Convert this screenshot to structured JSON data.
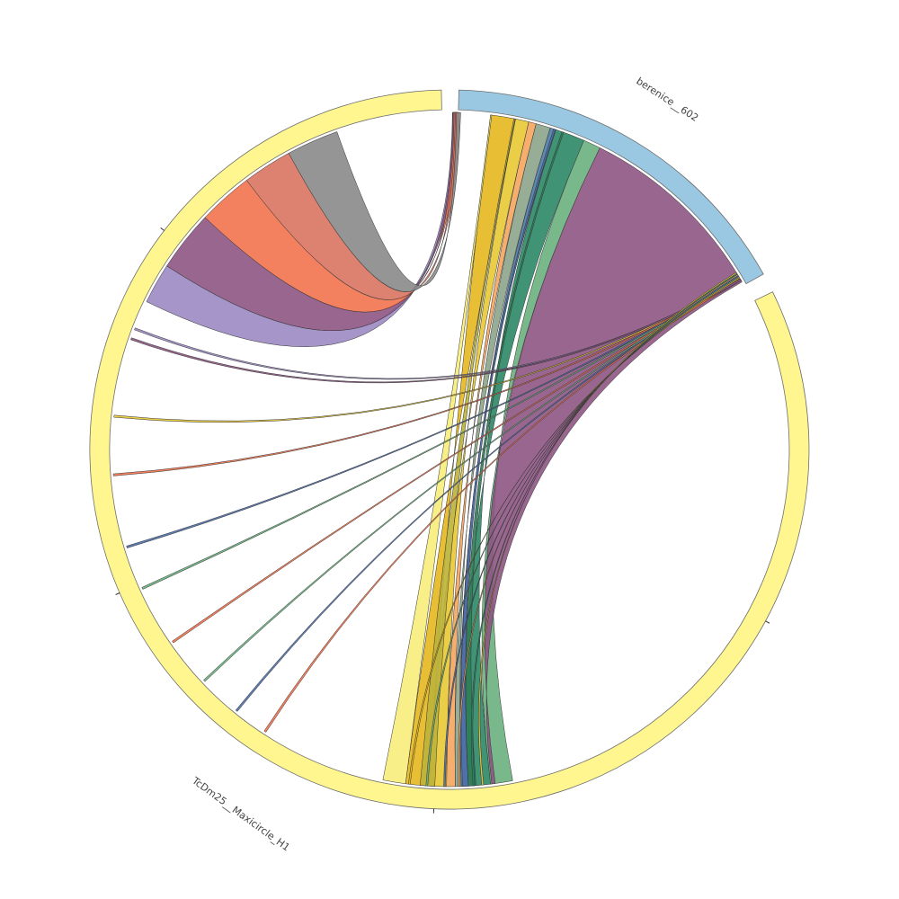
{
  "segments": [
    {
      "id": "tcdm25",
      "label": "TcDm25__Maxicircle_H1",
      "color": "#fff68f"
    },
    {
      "id": "berenice",
      "label": "berenice__602",
      "color": "#9ac8e2"
    }
  ],
  "ribbon_colors": {
    "grey": "#8a8a8a",
    "salmon": "#d97462",
    "orange_red": "#f2724c",
    "plum": "#8d5583",
    "lavender": "#9b8ac2",
    "gold": "#e6b81e",
    "yellow": "#e9c934",
    "orange": "#f4a55d",
    "sage": "#8da48a",
    "steel_blue": "#4a7aa6",
    "teal_green": "#2b8766",
    "pale_yellow": "#f7ed7b",
    "green": "#6ab07e",
    "olive": "#bdb238",
    "dark_green": "#2e7d57",
    "blue": "#4e6ea8"
  }
}
